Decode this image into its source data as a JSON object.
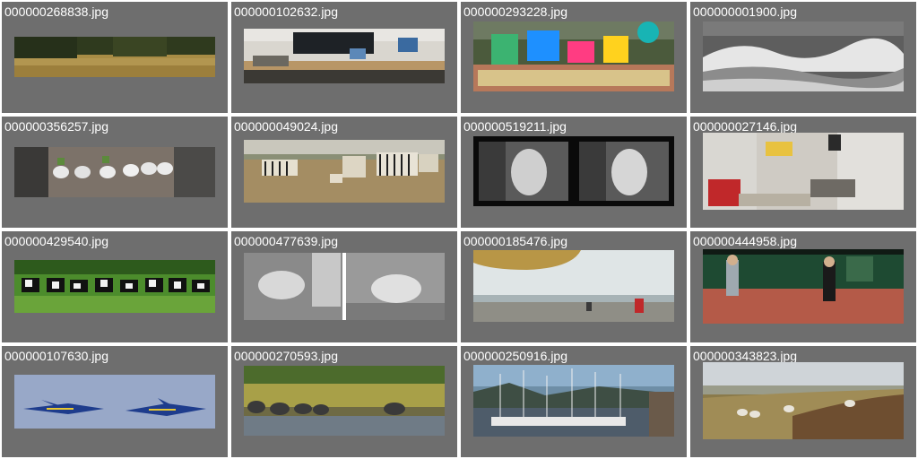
{
  "gallery": {
    "items": [
      {
        "filename": "000000268838.jpg",
        "subject": "field-grass-trees"
      },
      {
        "filename": "000000102632.jpg",
        "subject": "office-computers-panorama"
      },
      {
        "filename": "000000293228.jpg",
        "subject": "colorful-book-display"
      },
      {
        "filename": "000000001900.jpg",
        "subject": "ocean-wave-surfer-grayscale"
      },
      {
        "filename": "000000356257.jpg",
        "subject": "shoes-planters-on-wall"
      },
      {
        "filename": "000000049024.jpg",
        "subject": "zebras-on-savanna"
      },
      {
        "filename": "000000519211.jpg",
        "subject": "woman-on-phone-bw-collage"
      },
      {
        "filename": "000000027146.jpg",
        "subject": "kitchen-interior"
      },
      {
        "filename": "000000429540.jpg",
        "subject": "herd-of-cows-field"
      },
      {
        "filename": "000000477639.jpg",
        "subject": "sheep-bw-collage"
      },
      {
        "filename": "000000185476.jpg",
        "subject": "beach-kite-people"
      },
      {
        "filename": "000000444958.jpg",
        "subject": "kids-tennis-court"
      },
      {
        "filename": "000000107630.jpg",
        "subject": "blue-angels-jets"
      },
      {
        "filename": "000000270593.jpg",
        "subject": "elephants-by-water"
      },
      {
        "filename": "000000250916.jpg",
        "subject": "harbor-sailboats"
      },
      {
        "filename": "000000343823.jpg",
        "subject": "sheep-on-hillside"
      }
    ]
  }
}
